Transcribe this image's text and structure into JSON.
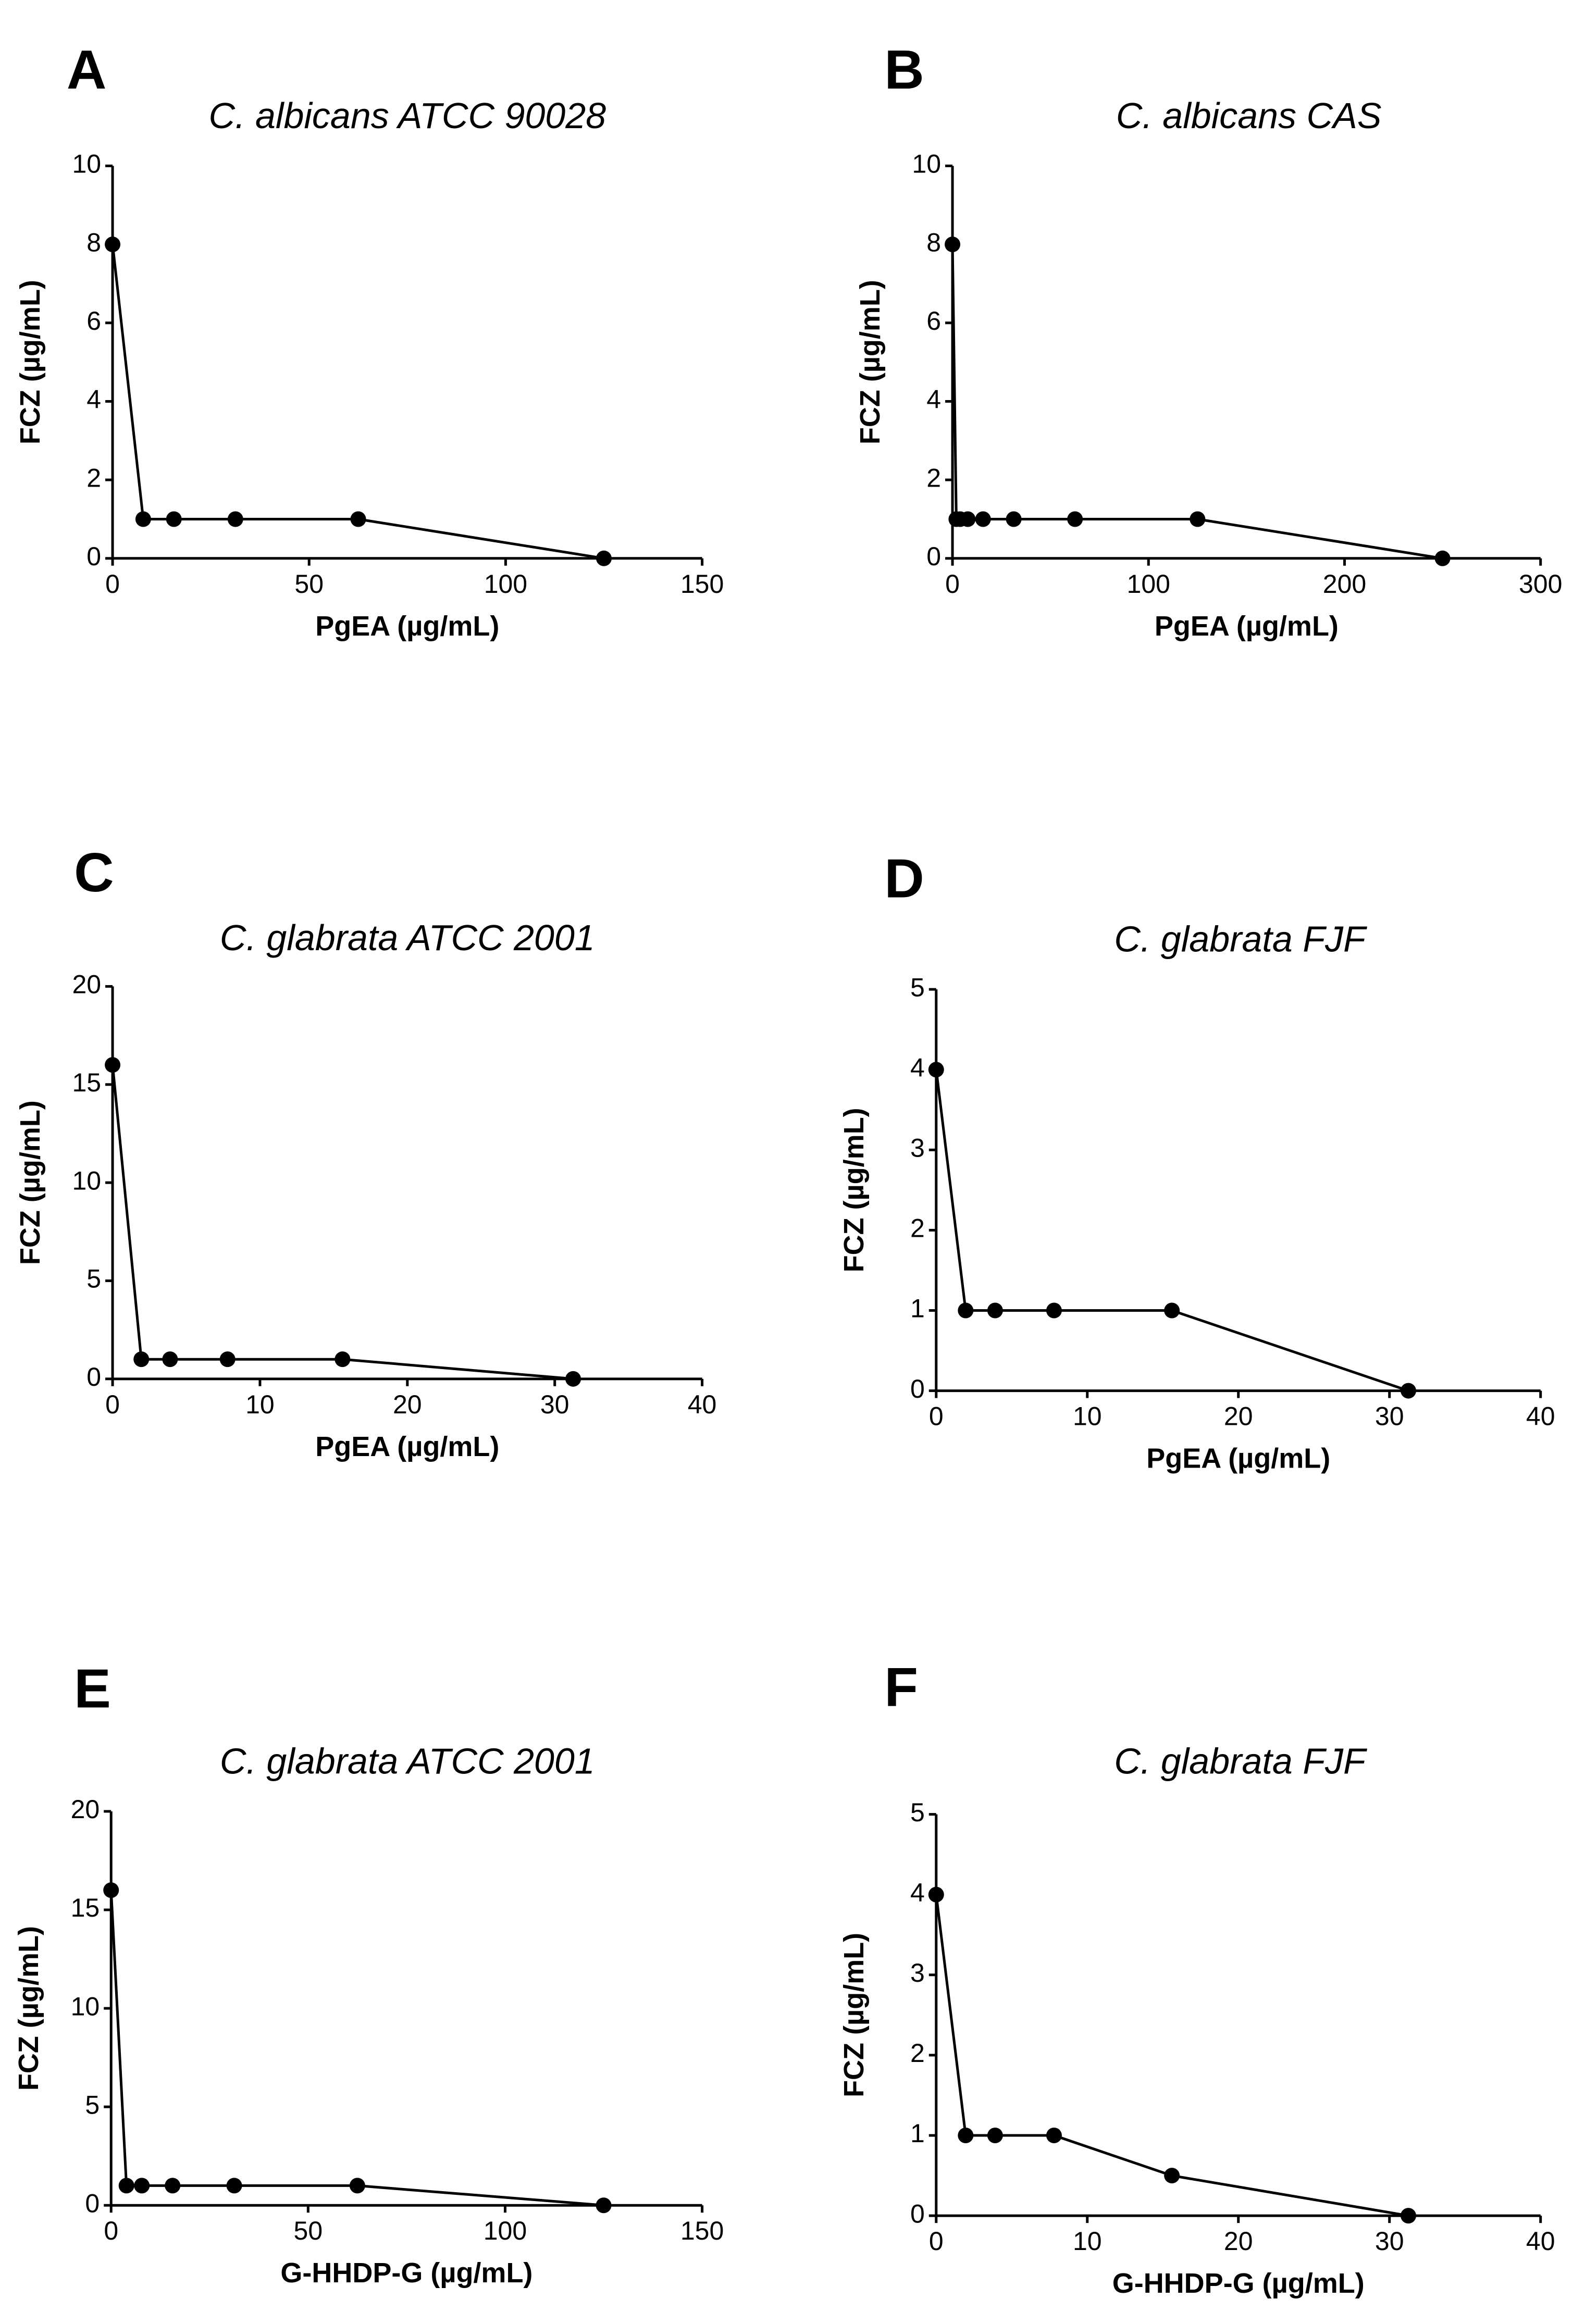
{
  "chart_data": [
    {
      "type": "line",
      "panel": "A",
      "title": "C. albicans ATCC 90028",
      "xlabel": "PgEA (µg/mL)",
      "ylabel": "FCZ (µg/mL)",
      "xlim": [
        0,
        150
      ],
      "ylim": [
        0,
        10
      ],
      "xticks": [
        0,
        50,
        100,
        150
      ],
      "yticks": [
        0,
        2,
        4,
        6,
        8,
        10
      ],
      "x": [
        0,
        7.8,
        15.6,
        31.25,
        62.5,
        125
      ],
      "y": [
        8,
        1,
        1,
        1,
        1,
        0
      ]
    },
    {
      "type": "line",
      "panel": "B",
      "title": "C. albicans CAS",
      "xlabel": "PgEA (µg/mL)",
      "ylabel": "FCZ (µg/mL)",
      "xlim": [
        0,
        300
      ],
      "ylim": [
        0,
        10
      ],
      "xticks": [
        0,
        100,
        200,
        300
      ],
      "yticks": [
        0,
        2,
        4,
        6,
        8,
        10
      ],
      "x": [
        0,
        1.95,
        3.9,
        7.8,
        15.6,
        31.25,
        62.5,
        125,
        250
      ],
      "y": [
        8,
        1,
        1,
        1,
        1,
        1,
        1,
        1,
        0
      ]
    },
    {
      "type": "line",
      "panel": "C",
      "title": "C. glabrata ATCC 2001",
      "xlabel": "PgEA (µg/mL)",
      "ylabel": "FCZ (µg/mL)",
      "xlim": [
        0,
        40
      ],
      "ylim": [
        0,
        20
      ],
      "xticks": [
        0,
        10,
        20,
        30,
        40
      ],
      "yticks": [
        0,
        5,
        10,
        15,
        20
      ],
      "x": [
        0,
        1.95,
        3.9,
        7.8,
        15.6,
        31.25
      ],
      "y": [
        16,
        1,
        1,
        1,
        1,
        0
      ]
    },
    {
      "type": "line",
      "panel": "D",
      "title": "C. glabrata FJF",
      "xlabel": "PgEA (µg/mL)",
      "ylabel": "FCZ (µg/mL)",
      "xlim": [
        0,
        40
      ],
      "ylim": [
        0,
        5
      ],
      "xticks": [
        0,
        10,
        20,
        30,
        40
      ],
      "yticks": [
        0,
        1,
        2,
        3,
        4,
        5
      ],
      "x": [
        0,
        1.95,
        3.9,
        7.8,
        15.6,
        31.25
      ],
      "y": [
        4,
        1,
        1,
        1,
        1,
        0
      ]
    },
    {
      "type": "line",
      "panel": "E",
      "title": "C. glabrata ATCC 2001",
      "xlabel": "G-HHDP-G (µg/mL)",
      "ylabel": "FCZ (µg/mL)",
      "xlim": [
        0,
        150
      ],
      "ylim": [
        0,
        20
      ],
      "xticks": [
        0,
        50,
        100,
        150
      ],
      "yticks": [
        0,
        5,
        10,
        15,
        20
      ],
      "x": [
        0,
        3.9,
        7.8,
        15.6,
        31.25,
        62.5,
        125
      ],
      "y": [
        16,
        1,
        1,
        1,
        1,
        1,
        0
      ]
    },
    {
      "type": "line",
      "panel": "F",
      "title": "C. glabrata FJF",
      "xlabel": "G-HHDP-G (µg/mL)",
      "ylabel": "FCZ (µg/mL)",
      "xlim": [
        0,
        40
      ],
      "ylim": [
        0,
        5
      ],
      "xticks": [
        0,
        10,
        20,
        30,
        40
      ],
      "yticks": [
        0,
        1,
        2,
        3,
        4,
        5
      ],
      "x": [
        0,
        1.95,
        3.9,
        7.8,
        15.6,
        31.25
      ],
      "y": [
        4,
        1,
        1,
        1,
        0.5,
        0
      ]
    }
  ],
  "style": {
    "line_color": "#000000",
    "marker_color": "#000000"
  }
}
